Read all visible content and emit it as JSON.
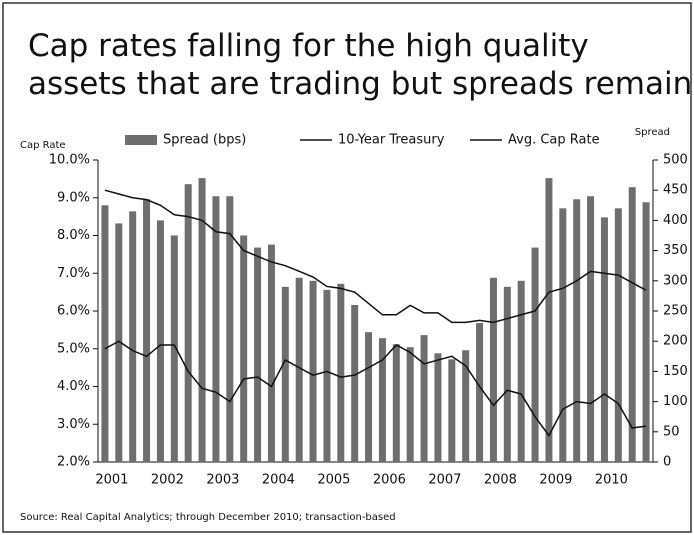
{
  "chart_data": {
    "type": "bar",
    "title": "Cap rates falling for the high quality assets that are trading but spreads remain wide",
    "y_label": "Cap Rate",
    "y2_label": "Spread",
    "source": "Source: Real Capital Analytics; through December 2010; transaction-based",
    "categories": [
      "2001",
      null,
      null,
      null,
      "2002",
      null,
      null,
      null,
      "2003",
      null,
      null,
      null,
      "2004",
      null,
      null,
      null,
      "2005",
      null,
      null,
      null,
      "2006",
      null,
      null,
      null,
      "2007",
      null,
      null,
      null,
      "2008",
      null,
      null,
      null,
      "2009",
      null,
      null,
      null,
      "2010",
      null,
      null,
      null
    ],
    "series": [
      {
        "name": "Spread (bps)",
        "type": "bar",
        "axis": "y2",
        "color": "#6e6e6e",
        "values": [
          425,
          395,
          415,
          435,
          400,
          375,
          460,
          470,
          440,
          440,
          375,
          355,
          360,
          290,
          305,
          300,
          285,
          295,
          260,
          215,
          205,
          195,
          190,
          210,
          180,
          170,
          185,
          230,
          305,
          290,
          300,
          355,
          470,
          420,
          435,
          440,
          405,
          420,
          455,
          430
        ]
      },
      {
        "name": "10-Year Treasury",
        "type": "line",
        "color": "#111111",
        "values": [
          5.0,
          5.2,
          4.95,
          4.8,
          5.1,
          5.1,
          4.4,
          3.95,
          3.85,
          3.6,
          4.2,
          4.25,
          4.0,
          4.7,
          4.5,
          4.3,
          4.4,
          4.25,
          4.3,
          4.5,
          4.7,
          5.1,
          4.9,
          4.6,
          4.7,
          4.8,
          4.55,
          4.0,
          3.5,
          3.9,
          3.8,
          3.2,
          2.7,
          3.4,
          3.6,
          3.55,
          3.8,
          3.55,
          2.9,
          2.95
        ]
      },
      {
        "name": "Avg. Cap Rate",
        "type": "line",
        "color": "#111111",
        "values": [
          9.2,
          9.1,
          9.0,
          8.95,
          8.8,
          8.55,
          8.5,
          8.4,
          8.1,
          8.05,
          7.6,
          7.45,
          7.3,
          7.2,
          7.05,
          6.9,
          6.65,
          6.6,
          6.5,
          6.2,
          5.9,
          5.9,
          6.15,
          5.95,
          5.95,
          5.7,
          5.7,
          5.75,
          5.7,
          5.8,
          5.9,
          6.0,
          6.5,
          6.6,
          6.8,
          7.05,
          7.0,
          6.95,
          6.75,
          6.55
        ]
      }
    ],
    "ylim": [
      2,
      10
    ],
    "yticks": [
      {
        "value": 2,
        "label": "2.0%"
      },
      {
        "value": 3,
        "label": "3.0%"
      },
      {
        "value": 4,
        "label": "4.0%"
      },
      {
        "value": 5,
        "label": "5.0%"
      },
      {
        "value": 6,
        "label": "6.0%"
      },
      {
        "value": 7,
        "label": "7.0%"
      },
      {
        "value": 8,
        "label": "8.0%"
      },
      {
        "value": 9,
        "label": "9.0%"
      },
      {
        "value": 10,
        "label": "10.0%"
      }
    ],
    "y2lim": [
      0,
      500
    ],
    "y2ticks": [
      0,
      50,
      100,
      150,
      200,
      250,
      300,
      350,
      400,
      450,
      500
    ]
  }
}
